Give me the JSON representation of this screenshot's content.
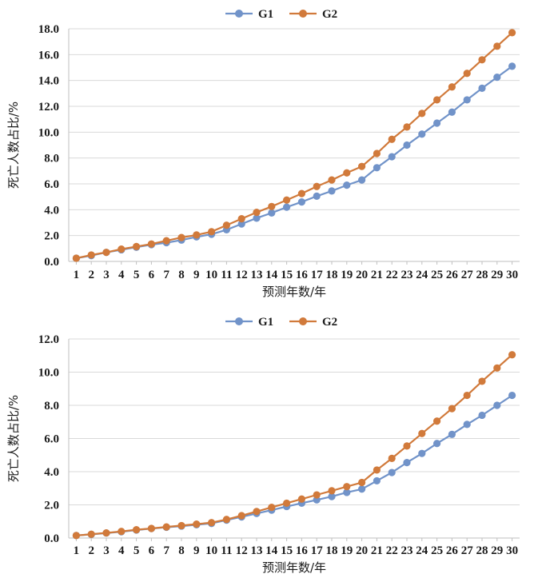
{
  "chart_data": [
    {
      "type": "line",
      "title": "",
      "xlabel": "预测年数/年",
      "ylabel": "死亡人数占比/%",
      "categories": [
        "1",
        "2",
        "3",
        "4",
        "5",
        "6",
        "7",
        "8",
        "9",
        "10",
        "11",
        "12",
        "13",
        "14",
        "15",
        "16",
        "17",
        "18",
        "19",
        "20",
        "21",
        "22",
        "23",
        "24",
        "25",
        "26",
        "27",
        "28",
        "29",
        "30"
      ],
      "ylim": [
        0,
        18
      ],
      "yticks": [
        "0.0",
        "2.0",
        "4.0",
        "6.0",
        "8.0",
        "10.0",
        "12.0",
        "14.0",
        "16.0",
        "18.0"
      ],
      "grid": "horizontal",
      "legend": "top-center",
      "series": [
        {
          "name": "G1",
          "color": "#7193c9",
          "values": [
            0.25,
            0.45,
            0.7,
            0.9,
            1.1,
            1.3,
            1.45,
            1.65,
            1.9,
            2.1,
            2.45,
            2.9,
            3.35,
            3.75,
            4.2,
            4.6,
            5.05,
            5.45,
            5.9,
            6.3,
            7.25,
            8.1,
            9.0,
            9.85,
            10.7,
            11.55,
            12.5,
            13.4,
            14.25,
            15.1
          ]
        },
        {
          "name": "G2",
          "color": "#d17a3b",
          "values": [
            0.25,
            0.5,
            0.7,
            0.95,
            1.15,
            1.35,
            1.6,
            1.85,
            2.05,
            2.3,
            2.8,
            3.3,
            3.8,
            4.25,
            4.75,
            5.25,
            5.8,
            6.3,
            6.85,
            7.35,
            8.35,
            9.45,
            10.4,
            11.45,
            12.5,
            13.5,
            14.55,
            15.6,
            16.65,
            17.7
          ]
        }
      ]
    },
    {
      "type": "line",
      "title": "",
      "xlabel": "预测年数/年",
      "ylabel": "死亡人数占比/%",
      "categories": [
        "1",
        "2",
        "3",
        "4",
        "5",
        "6",
        "7",
        "8",
        "9",
        "10",
        "11",
        "12",
        "13",
        "14",
        "15",
        "16",
        "17",
        "18",
        "19",
        "20",
        "21",
        "22",
        "23",
        "24",
        "25",
        "26",
        "27",
        "28",
        "29",
        "30"
      ],
      "ylim": [
        0,
        12
      ],
      "yticks": [
        "0.0",
        "2.0",
        "4.0",
        "6.0",
        "8.0",
        "10.0",
        "12.0"
      ],
      "grid": "horizontal",
      "legend": "top-center",
      "series": [
        {
          "name": "G1",
          "color": "#7193c9",
          "values": [
            0.15,
            0.22,
            0.3,
            0.38,
            0.48,
            0.57,
            0.65,
            0.72,
            0.8,
            0.88,
            1.08,
            1.27,
            1.48,
            1.68,
            1.9,
            2.1,
            2.3,
            2.5,
            2.75,
            2.95,
            3.45,
            3.95,
            4.55,
            5.1,
            5.7,
            6.25,
            6.85,
            7.4,
            8.0,
            8.6
          ]
        },
        {
          "name": "G2",
          "color": "#d17a3b",
          "values": [
            0.15,
            0.23,
            0.31,
            0.4,
            0.5,
            0.58,
            0.67,
            0.75,
            0.84,
            0.93,
            1.12,
            1.35,
            1.6,
            1.85,
            2.1,
            2.35,
            2.6,
            2.85,
            3.1,
            3.35,
            4.1,
            4.8,
            5.55,
            6.3,
            7.05,
            7.8,
            8.6,
            9.45,
            10.25,
            11.05
          ]
        }
      ]
    }
  ]
}
